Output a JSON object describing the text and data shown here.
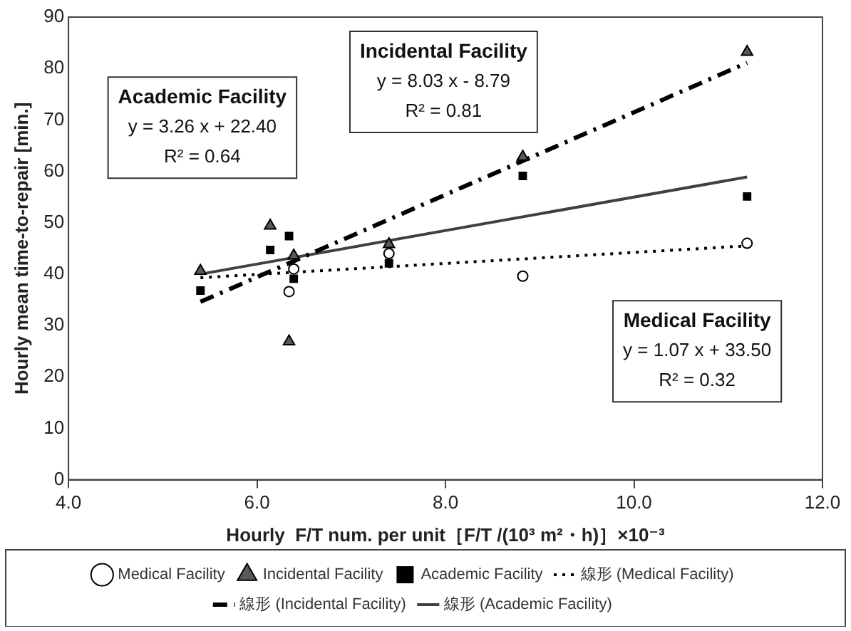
{
  "chart_data": {
    "type": "scatter",
    "xlabel": "Hourly  F/T num. per unit［F/T /(10³ m²・h)］×10⁻³",
    "ylabel": "Hourly mean time-to-repair [min.]",
    "xlim": [
      4,
      12
    ],
    "xticks": [
      {
        "value": 4,
        "label": "4.0"
      },
      {
        "value": 6,
        "label": "6.0"
      },
      {
        "value": 8,
        "label": "8.0"
      },
      {
        "value": 10,
        "label": "10.0"
      },
      {
        "value": 12,
        "label": "12.0"
      }
    ],
    "ylim": [
      0,
      90
    ],
    "yticks": [
      0,
      10,
      20,
      30,
      40,
      50,
      60,
      70,
      80,
      90
    ],
    "grid": false,
    "legend": "bottom",
    "series": [
      {
        "name": "Medical Facility",
        "type": "scatter",
        "marker": "circle",
        "color": "#000000",
        "x": [
          6.34,
          6.39,
          7.4,
          8.82,
          11.2
        ],
        "values": [
          36.6,
          41,
          44,
          39.6,
          46
        ]
      },
      {
        "name": "Incidental Facility",
        "type": "scatter",
        "marker": "triangle",
        "color": "#595959",
        "x": [
          5.4,
          6.14,
          6.34,
          6.39,
          7.4,
          8.82,
          11.2
        ],
        "values": [
          40.6,
          49.4,
          26.9,
          43.6,
          45.8,
          62.8,
          83.2
        ]
      },
      {
        "name": "Academic Facility",
        "type": "scatter",
        "marker": "square",
        "color": "#000000",
        "x": [
          5.4,
          6.14,
          6.34,
          6.39,
          7.4,
          8.82,
          11.2
        ],
        "values": [
          36.8,
          44.7,
          47.4,
          39.1,
          42.1,
          59.1,
          55.1
        ]
      },
      {
        "name": "線形 (Medical Facility)",
        "type": "line",
        "line_style": "dotted",
        "color": "#000000",
        "x": [
          5.4,
          11.2
        ],
        "values": [
          39.3,
          45.5
        ]
      },
      {
        "name": "線形 (Incidental Facility)",
        "type": "line",
        "line_style": "dashed",
        "color": "#000000",
        "x": [
          5.4,
          11.2
        ],
        "values": [
          34.6,
          81.1
        ]
      },
      {
        "name": "線形 (Academic Facility)",
        "type": "line",
        "line_style": "solid",
        "color": "#404040",
        "x": [
          5.4,
          11.2
        ],
        "values": [
          40.0,
          58.9
        ]
      }
    ],
    "annotations": [
      "Academic Facility\ny = 3.26 x + 22.40\nR² = 0.64",
      "Incidental Facility\ny = 8.03 x - 8.79\nR² = 0.81",
      "Medical Facility\ny = 1.07 x + 33.50\nR² = 0.32"
    ]
  }
}
